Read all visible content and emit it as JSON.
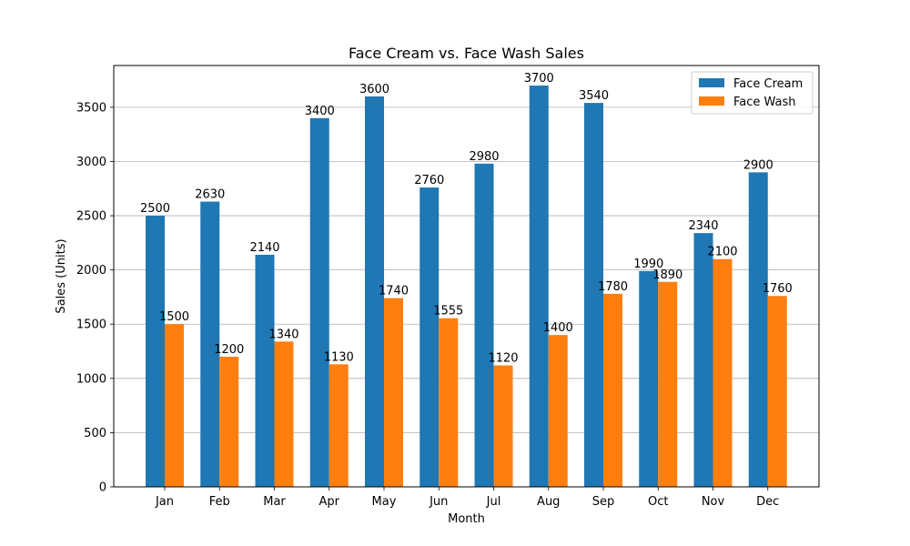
{
  "chart_data": {
    "type": "bar",
    "title": "Face Cream vs. Face Wash Sales",
    "xlabel": "Month",
    "ylabel": "Sales (Units)",
    "categories": [
      "Jan",
      "Feb",
      "Mar",
      "Apr",
      "May",
      "Jun",
      "Jul",
      "Aug",
      "Sep",
      "Oct",
      "Nov",
      "Dec"
    ],
    "series": [
      {
        "name": "Face Cream",
        "color": "#1f77b4",
        "values": [
          2500,
          2630,
          2140,
          3400,
          3600,
          2760,
          2980,
          3700,
          3540,
          1990,
          2340,
          2900
        ]
      },
      {
        "name": "Face Wash",
        "color": "#ff7f0e",
        "values": [
          1500,
          1200,
          1340,
          1130,
          1740,
          1555,
          1120,
          1400,
          1780,
          1890,
          2100,
          1760
        ]
      }
    ],
    "ylim": [
      0,
      3885
    ],
    "yticks": [
      0,
      500,
      1000,
      1500,
      2000,
      2500,
      3000,
      3500
    ],
    "grid": "horizontal",
    "legend_position": "top-right"
  }
}
